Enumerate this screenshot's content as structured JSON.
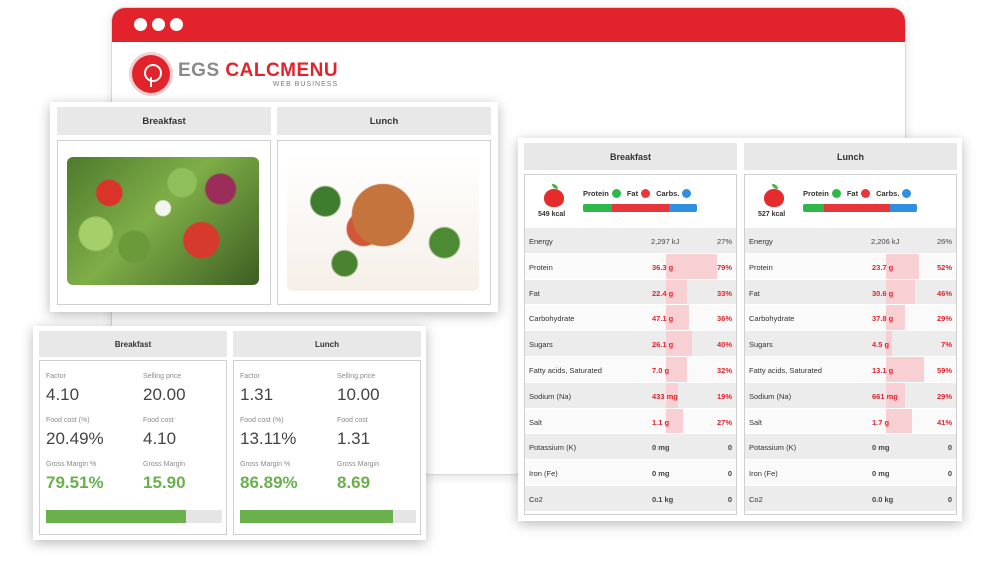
{
  "browser": {
    "brand_prefix": "EGS ",
    "brand_name": "CALCMENU",
    "brand_tagline": "WEB BUSINESS"
  },
  "colors": {
    "accent": "#e2232b",
    "green": "#6ab04c",
    "blue": "#2f8fe0",
    "protein": "#2eb84a",
    "fat": "#e8373a"
  },
  "photos": {
    "columns": [
      {
        "label": "Breakfast",
        "image": "salad"
      },
      {
        "label": "Lunch",
        "image": "roast-chicken-dish"
      }
    ]
  },
  "finance": {
    "labels": {
      "factor": "Factor",
      "selling_price": "Selling price",
      "food_cost_pct": "Food cost (%)",
      "food_cost": "Food cost",
      "gross_margin_pct": "Gross Margin %",
      "gross_margin": "Gross Margin"
    },
    "columns": [
      {
        "label": "Breakfast",
        "factor": "4.10",
        "selling_price": "20.00",
        "food_cost_pct": "20.49%",
        "food_cost": "4.10",
        "gross_margin_pct": "79.51%",
        "gross_margin": "15.90",
        "margin_level": 0.7951
      },
      {
        "label": "Lunch",
        "factor": "1.31",
        "selling_price": "10.00",
        "food_cost_pct": "13.11%",
        "food_cost": "1.31",
        "gross_margin_pct": "86.89%",
        "gross_margin": "8.69",
        "margin_level": 0.8689
      }
    ]
  },
  "nutrition": {
    "legend": {
      "protein": "Protein",
      "fat": "Fat",
      "carbs": "Carbs."
    },
    "columns": [
      {
        "label": "Breakfast",
        "kcal": "549 kcal",
        "macro_split": [
          0.25,
          0.5,
          0.25
        ],
        "rows": [
          {
            "name": "Energy",
            "value": "2,297 kJ",
            "pct": "27%",
            "level": 0,
            "style": "plain"
          },
          {
            "name": "Protein",
            "value": "36.3 g",
            "pct": "79%",
            "level": 0.79,
            "style": "hl"
          },
          {
            "name": "Fat",
            "value": "22.4 g",
            "pct": "33%",
            "level": 0.33,
            "style": "hl"
          },
          {
            "name": "Carbohydrate",
            "value": "47.1 g",
            "pct": "36%",
            "level": 0.36,
            "style": "hl"
          },
          {
            "name": "Sugars",
            "value": "26.1 g",
            "pct": "40%",
            "level": 0.4,
            "style": "hl"
          },
          {
            "name": "Fatty acids, Saturated",
            "value": "7.0 g",
            "pct": "32%",
            "level": 0.32,
            "style": "hl"
          },
          {
            "name": "Sodium (Na)",
            "value": "433 mg",
            "pct": "19%",
            "level": 0.19,
            "style": "hl"
          },
          {
            "name": "Salt",
            "value": "1.1 g",
            "pct": "27%",
            "level": 0.27,
            "style": "hl"
          },
          {
            "name": "Potassium (K)",
            "value": "0 mg",
            "pct": "0",
            "level": 0,
            "style": "bold"
          },
          {
            "name": "Iron (Fe)",
            "value": "0 mg",
            "pct": "0",
            "level": 0,
            "style": "bold"
          },
          {
            "name": "Co2",
            "value": "0.1 kg",
            "pct": "0",
            "level": 0,
            "style": "bold"
          }
        ]
      },
      {
        "label": "Lunch",
        "kcal": "527 kcal",
        "macro_split": [
          0.18,
          0.58,
          0.24
        ],
        "rows": [
          {
            "name": "Energy",
            "value": "2,206 kJ",
            "pct": "26%",
            "level": 0,
            "style": "plain"
          },
          {
            "name": "Protein",
            "value": "23.7 g",
            "pct": "52%",
            "level": 0.52,
            "style": "hl"
          },
          {
            "name": "Fat",
            "value": "30.6 g",
            "pct": "46%",
            "level": 0.46,
            "style": "hl"
          },
          {
            "name": "Carbohydrate",
            "value": "37.8 g",
            "pct": "29%",
            "level": 0.29,
            "style": "hl"
          },
          {
            "name": "Sugars",
            "value": "4.5 g",
            "pct": "7%",
            "level": 0.07,
            "style": "hl"
          },
          {
            "name": "Fatty acids, Saturated",
            "value": "13.1 g",
            "pct": "59%",
            "level": 0.59,
            "style": "hl"
          },
          {
            "name": "Sodium (Na)",
            "value": "661 mg",
            "pct": "29%",
            "level": 0.29,
            "style": "hl"
          },
          {
            "name": "Salt",
            "value": "1.7 g",
            "pct": "41%",
            "level": 0.41,
            "style": "hl"
          },
          {
            "name": "Potassium (K)",
            "value": "0 mg",
            "pct": "0",
            "level": 0,
            "style": "bold"
          },
          {
            "name": "Iron (Fe)",
            "value": "0 mg",
            "pct": "0",
            "level": 0,
            "style": "bold"
          },
          {
            "name": "Co2",
            "value": "0.0 kg",
            "pct": "0",
            "level": 0,
            "style": "bold"
          }
        ]
      }
    ]
  }
}
